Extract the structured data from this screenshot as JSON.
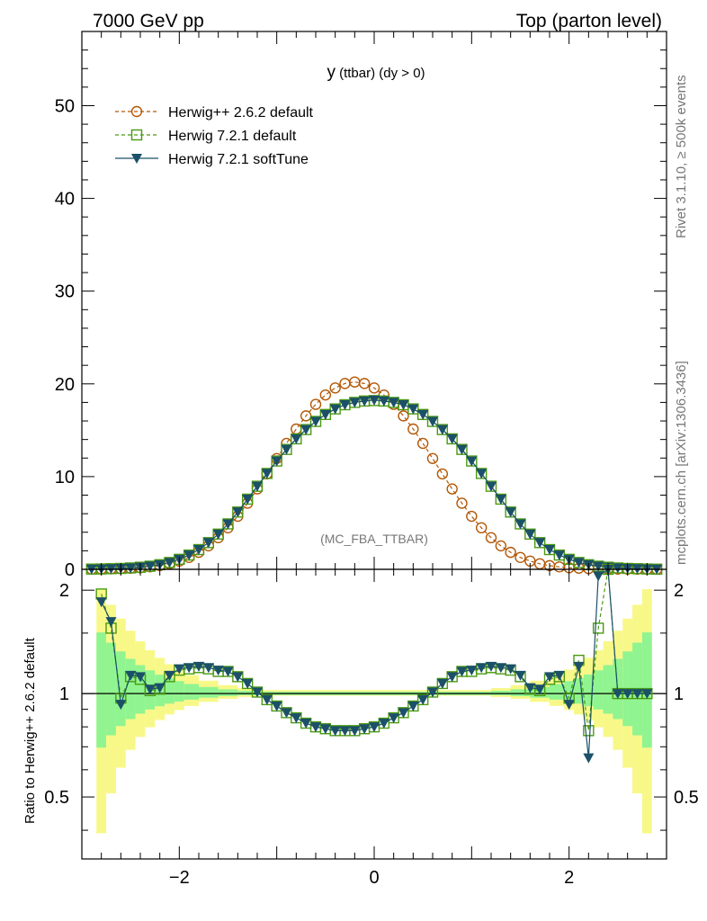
{
  "header": {
    "left": "7000 GeV pp",
    "right": "Top (parton level)"
  },
  "side": {
    "rivet": "Rivet 3.1.10, ≥ 500k events",
    "mcplots": "mcplots.cern.ch [arXiv:1306.3436]"
  },
  "watermark": "(MC_FBA_TTBAR)",
  "plot_title": {
    "main": "y",
    "sub": " (ttbar) (dy > 0)"
  },
  "legend": [
    {
      "label": "Herwig++ 2.6.2 default",
      "color": "#b35806",
      "marker": "circle-open",
      "dash": true
    },
    {
      "label": "Herwig 7.2.1 default",
      "color": "#4a9a10",
      "marker": "square-open",
      "dash": true
    },
    {
      "label": "Herwig 7.2.1 softTune",
      "color": "#1b5068",
      "marker": "triangle-down-filled",
      "dash": false
    }
  ],
  "ratio_ylabel": "Ratio to Herwig++ 2.6.2 default",
  "colors": {
    "band_inner": "#90f490",
    "band_outer": "#f8f888",
    "ref_line": "#000000"
  },
  "chart_data": [
    {
      "type": "line",
      "panel": "main",
      "xlim": [
        -3.0,
        3.0
      ],
      "ylim": [
        0,
        58
      ],
      "ytick_values": [
        0,
        10,
        20,
        30,
        40,
        50
      ],
      "ytick_labels": [
        "0",
        "10",
        "20",
        "30",
        "40",
        "50"
      ],
      "x": [
        -2.9,
        -2.8,
        -2.7,
        -2.6,
        -2.5,
        -2.4,
        -2.3,
        -2.2,
        -2.1,
        -2.0,
        -1.9,
        -1.8,
        -1.7,
        -1.6,
        -1.5,
        -1.4,
        -1.3,
        -1.2,
        -1.1,
        -1.0,
        -0.9,
        -0.8,
        -0.7,
        -0.6,
        -0.5,
        -0.4,
        -0.3,
        -0.2,
        -0.1,
        0.0,
        0.1,
        0.2,
        0.3,
        0.4,
        0.5,
        0.6,
        0.7,
        0.8,
        0.9,
        1.0,
        1.1,
        1.2,
        1.3,
        1.4,
        1.5,
        1.6,
        1.7,
        1.8,
        1.9,
        2.0,
        2.1,
        2.2,
        2.3,
        2.4,
        2.5,
        2.6,
        2.7,
        2.8,
        2.9
      ],
      "series": [
        {
          "name": "Herwig++ 2.6.2 default",
          "values": [
            0.02,
            0.03,
            0.05,
            0.07,
            0.12,
            0.17,
            0.26,
            0.4,
            0.6,
            0.89,
            1.28,
            1.83,
            2.53,
            3.41,
            4.48,
            5.72,
            7.13,
            8.67,
            10.29,
            11.95,
            13.58,
            15.13,
            16.55,
            17.79,
            18.8,
            19.56,
            20.04,
            20.2,
            20.04,
            19.56,
            18.8,
            17.79,
            16.55,
            15.13,
            13.58,
            11.95,
            10.29,
            8.67,
            7.13,
            5.72,
            4.48,
            3.41,
            2.53,
            1.83,
            1.28,
            0.89,
            0.6,
            0.4,
            0.26,
            0.17,
            0.12,
            0.07,
            0.05,
            0.03,
            0.02,
            0.02,
            0.01,
            0.01,
            0.01
          ]
        },
        {
          "name": "Herwig 7.2.1 default",
          "values": [
            0.03,
            0.04,
            0.07,
            0.1,
            0.15,
            0.23,
            0.34,
            0.5,
            0.74,
            1.08,
            1.54,
            2.13,
            2.88,
            3.8,
            4.9,
            6.18,
            7.57,
            8.96,
            10.34,
            11.68,
            12.93,
            14.07,
            15.07,
            15.95,
            16.7,
            17.3,
            17.75,
            18.0,
            18.15,
            18.2,
            18.15,
            18.0,
            17.75,
            17.3,
            16.7,
            15.95,
            15.07,
            14.07,
            12.93,
            11.68,
            10.34,
            8.96,
            7.57,
            6.18,
            4.9,
            3.8,
            2.88,
            2.13,
            1.54,
            1.08,
            0.74,
            0.5,
            0.34,
            0.23,
            0.15,
            0.1,
            0.07,
            0.04,
            0.02
          ]
        },
        {
          "name": "Herwig 7.2.1 softTune",
          "values": [
            0.03,
            0.04,
            0.07,
            0.1,
            0.15,
            0.23,
            0.34,
            0.5,
            0.74,
            1.08,
            1.54,
            2.13,
            2.88,
            3.8,
            4.9,
            6.18,
            7.57,
            8.96,
            10.34,
            11.68,
            12.93,
            14.07,
            15.07,
            15.95,
            16.7,
            17.3,
            17.75,
            18.0,
            18.15,
            18.25,
            18.15,
            18.0,
            17.75,
            17.3,
            16.7,
            15.95,
            15.07,
            14.07,
            12.93,
            11.68,
            10.34,
            8.96,
            7.57,
            6.18,
            4.9,
            3.8,
            2.88,
            2.13,
            1.54,
            1.08,
            0.74,
            0.5,
            0.34,
            0.23,
            0.15,
            0.1,
            0.07,
            0.04,
            0.02
          ]
        }
      ]
    },
    {
      "type": "line",
      "panel": "ratio",
      "xlim": [
        -3.0,
        3.0
      ],
      "ylim": [
        0.33,
        2.3
      ],
      "xtick_values": [
        -2,
        0,
        2
      ],
      "xtick_labels": [
        "−2",
        "0",
        "2"
      ],
      "ytick_values": [
        0.5,
        1,
        2
      ],
      "ytick_labels": [
        "0.5",
        "1",
        "2"
      ],
      "x": [
        -2.8,
        -2.7,
        -2.6,
        -2.5,
        -2.4,
        -2.3,
        -2.2,
        -2.1,
        -2.0,
        -1.9,
        -1.8,
        -1.7,
        -1.6,
        -1.5,
        -1.4,
        -1.3,
        -1.2,
        -1.1,
        -1.0,
        -0.9,
        -0.8,
        -0.7,
        -0.6,
        -0.5,
        -0.4,
        -0.3,
        -0.2,
        -0.1,
        0.0,
        0.1,
        0.2,
        0.3,
        0.4,
        0.5,
        0.6,
        0.7,
        0.8,
        0.9,
        1.0,
        1.1,
        1.2,
        1.3,
        1.4,
        1.5,
        1.6,
        1.7,
        1.8,
        1.9,
        2.0,
        2.1,
        2.2,
        2.3,
        2.4,
        2.5,
        2.6,
        2.7,
        2.8
      ],
      "series": [
        {
          "name": "Herwig 7.2.1 default",
          "values": [
            1.95,
            1.55,
            0.97,
            1.12,
            1.1,
            1.02,
            1.03,
            1.12,
            1.17,
            1.18,
            1.19,
            1.18,
            1.16,
            1.16,
            1.12,
            1.07,
            1.01,
            0.96,
            0.92,
            0.88,
            0.85,
            0.82,
            0.8,
            0.79,
            0.78,
            0.78,
            0.78,
            0.79,
            0.8,
            0.82,
            0.85,
            0.88,
            0.92,
            0.96,
            1.01,
            1.07,
            1.12,
            1.16,
            1.16,
            1.18,
            1.19,
            1.18,
            1.17,
            1.12,
            1.03,
            1.02,
            1.1,
            1.12,
            0.97,
            1.25,
            0.78,
            1.55,
            2.7,
            1.0,
            1.0,
            1.0,
            1.0
          ]
        },
        {
          "name": "Herwig 7.2.1 softTune",
          "values": [
            1.85,
            1.62,
            0.93,
            1.13,
            1.12,
            1.03,
            1.04,
            1.13,
            1.18,
            1.19,
            1.2,
            1.19,
            1.17,
            1.16,
            1.12,
            1.07,
            1.01,
            0.96,
            0.92,
            0.88,
            0.85,
            0.82,
            0.8,
            0.79,
            0.78,
            0.78,
            0.78,
            0.79,
            0.8,
            0.82,
            0.85,
            0.88,
            0.92,
            0.96,
            1.01,
            1.07,
            1.12,
            1.16,
            1.17,
            1.19,
            1.2,
            1.19,
            1.18,
            1.13,
            1.04,
            1.03,
            1.12,
            1.13,
            0.93,
            1.2,
            0.65,
            2.2,
            2.9,
            1.0,
            1.0,
            1.0,
            1.0
          ]
        }
      ]
    }
  ]
}
